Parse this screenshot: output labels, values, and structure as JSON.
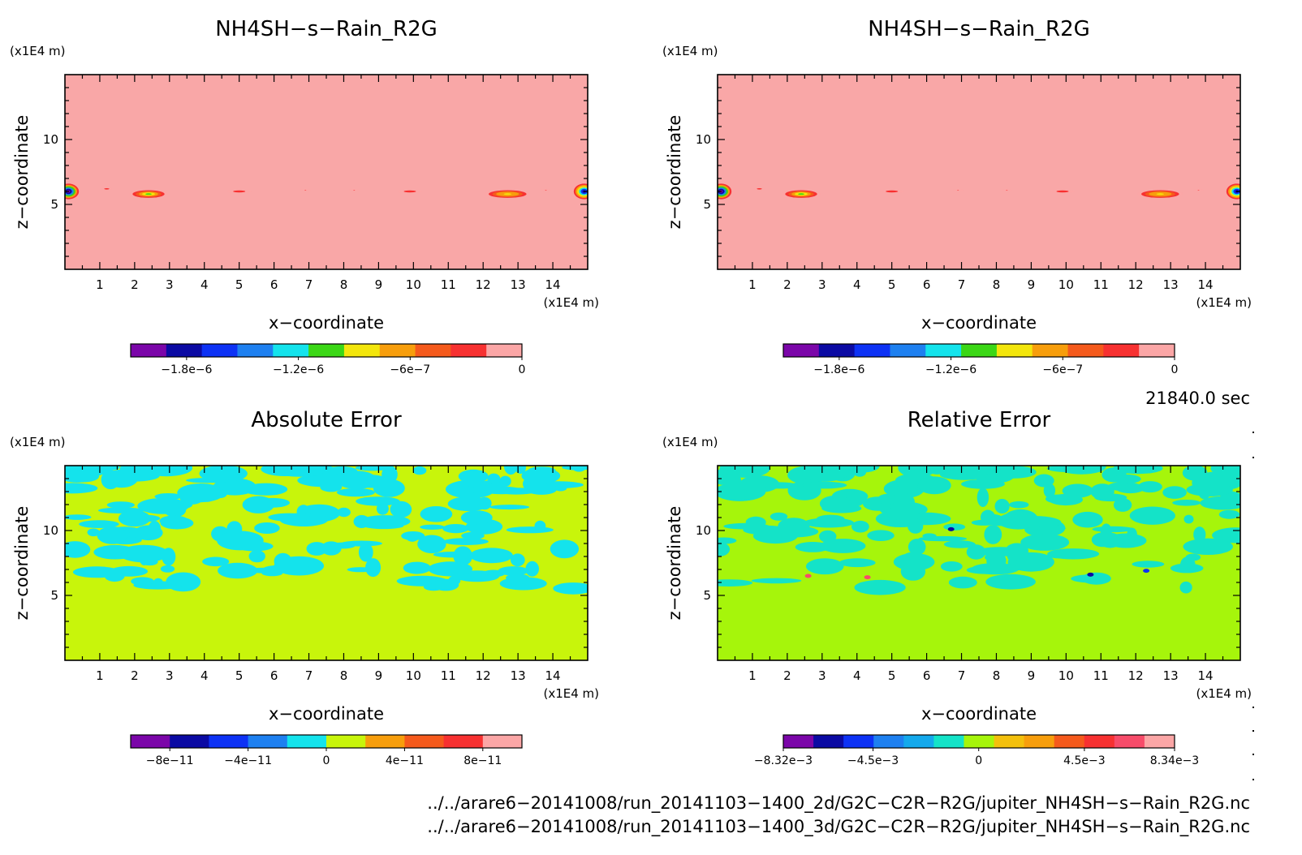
{
  "panels": [
    {
      "id": "p1",
      "title": "NH4SH−s−Rain_R2G",
      "x_unit": "(x1E4 m)",
      "y_unit": "(x1E4 m)",
      "xlabel": "x−coordinate",
      "ylabel": "z−coordinate",
      "x_ticks": [
        "1",
        "2",
        "3",
        "4",
        "5",
        "6",
        "7",
        "8",
        "9",
        "10",
        "11",
        "12",
        "13",
        "14"
      ],
      "y_ticks": [
        "5",
        "10"
      ],
      "background": "#f9a7a7",
      "colorbar": {
        "colors": [
          "#7b06a9",
          "#0b0aa3",
          "#0d32f5",
          "#1e80f0",
          "#14e3ec",
          "#3bd716",
          "#f3e60c",
          "#f79e0c",
          "#f55a1c",
          "#f73131",
          "#fba6a6"
        ],
        "tick_labels": [
          "−1.8e−6",
          "−1.2e−6",
          "−6e−7",
          "0"
        ]
      }
    },
    {
      "id": "p2",
      "title": "NH4SH−s−Rain_R2G",
      "x_unit": "(x1E4 m)",
      "y_unit": "(x1E4 m)",
      "xlabel": "x−coordinate",
      "ylabel": "z−coordinate",
      "x_ticks": [
        "1",
        "2",
        "3",
        "4",
        "5",
        "6",
        "7",
        "8",
        "9",
        "10",
        "11",
        "12",
        "13",
        "14"
      ],
      "y_ticks": [
        "5",
        "10"
      ],
      "background": "#f9a7a7",
      "colorbar": {
        "colors": [
          "#7b06a9",
          "#0b0aa3",
          "#0d32f5",
          "#1e80f0",
          "#14e3ec",
          "#3bd716",
          "#f3e60c",
          "#f79e0c",
          "#f55a1c",
          "#f73131",
          "#fba6a6"
        ],
        "tick_labels": [
          "−1.8e−6",
          "−1.2e−6",
          "−6e−7",
          "0"
        ]
      }
    },
    {
      "id": "p3",
      "title": "Absolute Error",
      "x_unit": "(x1E4 m)",
      "y_unit": "(x1E4 m)",
      "xlabel": "x−coordinate",
      "ylabel": "z−coordinate",
      "x_ticks": [
        "1",
        "2",
        "3",
        "4",
        "5",
        "6",
        "7",
        "8",
        "9",
        "10",
        "11",
        "12",
        "13",
        "14"
      ],
      "y_ticks": [
        "5",
        "10"
      ],
      "background": "#c8f50b",
      "colorbar": {
        "colors": [
          "#7b06a9",
          "#0b0aa3",
          "#0d32f5",
          "#1e80f0",
          "#14e3ec",
          "#c8f50b",
          "#f79e0c",
          "#f55a1c",
          "#f73131",
          "#fba6a6"
        ],
        "tick_labels": [
          "−8e−11",
          "−4e−11",
          "0",
          "4e−11",
          "8e−11"
        ]
      }
    },
    {
      "id": "p4",
      "title": "Relative Error",
      "x_unit": "(x1E4 m)",
      "y_unit": "(x1E4 m)",
      "xlabel": "x−coordinate",
      "ylabel": "z−coordinate",
      "x_ticks": [
        "1",
        "2",
        "3",
        "4",
        "5",
        "6",
        "7",
        "8",
        "9",
        "10",
        "11",
        "12",
        "13",
        "14"
      ],
      "y_ticks": [
        "5",
        "10"
      ],
      "background": "#a6f50b",
      "colorbar": {
        "colors": [
          "#7b06a9",
          "#0b0aa3",
          "#0d32f5",
          "#1e80f0",
          "#14a9ec",
          "#14e3c8",
          "#a6f50b",
          "#f3c00c",
          "#f79e0c",
          "#f55a1c",
          "#f73131",
          "#f74c6a",
          "#fba6a6"
        ],
        "tick_labels": [
          "−8.32e−3",
          "−4.5e−3",
          "0",
          "4.5e−3",
          "8.34e−3"
        ]
      }
    }
  ],
  "time_label": "21840.0 sec",
  "file_paths": [
    "../../arare6−20141008/run_20141103−1400_2d/G2C−C2R−R2G/jupiter_NH4SH−s−Rain_R2G.nc",
    "../../arare6−20141008/run_20141103−1400_3d/G2C−C2R−R2G/jupiter_NH4SH−s−Rain_R2G.nc"
  ],
  "chart_data": [
    {
      "type": "heatmap",
      "title": "NH4SH−s−Rain_R2G",
      "xlabel": "x−coordinate",
      "ylabel": "z−coordinate",
      "x_unit": "(x1E4 m)",
      "y_unit": "(x1E4 m)",
      "xlim": [
        0,
        15
      ],
      "ylim": [
        0,
        15
      ],
      "color_range": [
        -2.1e-06,
        0
      ],
      "background_value": 0,
      "features": [
        {
          "x": 0.1,
          "z": 6.0,
          "rx": 0.3,
          "rz": 0.6,
          "min": -2.1e-06
        },
        {
          "x": 1.2,
          "z": 6.2,
          "rx": 0.15,
          "rz": 0.1,
          "min": -3e-07
        },
        {
          "x": 2.4,
          "z": 5.8,
          "rx": 0.55,
          "rz": 0.35,
          "min": -1.1e-06
        },
        {
          "x": 5.0,
          "z": 6.0,
          "rx": 0.35,
          "rz": 0.15,
          "min": -3e-07
        },
        {
          "x": 6.9,
          "z": 6.1,
          "rx": 0.15,
          "rz": 0.1,
          "min": -2e-07
        },
        {
          "x": 8.3,
          "z": 6.1,
          "rx": 0.15,
          "rz": 0.1,
          "min": -2e-07
        },
        {
          "x": 9.9,
          "z": 6.0,
          "rx": 0.35,
          "rz": 0.15,
          "min": -3e-07
        },
        {
          "x": 12.7,
          "z": 5.8,
          "rx": 0.65,
          "rz": 0.35,
          "min": -9e-07
        },
        {
          "x": 13.8,
          "z": 6.1,
          "rx": 0.15,
          "rz": 0.1,
          "min": -2e-07
        },
        {
          "x": 14.9,
          "z": 6.0,
          "rx": 0.3,
          "rz": 0.6,
          "min": -1.9e-06
        }
      ]
    },
    {
      "type": "heatmap",
      "title": "NH4SH−s−Rain_R2G",
      "xlabel": "x−coordinate",
      "ylabel": "z−coordinate",
      "x_unit": "(x1E4 m)",
      "y_unit": "(x1E4 m)",
      "xlim": [
        0,
        15
      ],
      "ylim": [
        0,
        15
      ],
      "color_range": [
        -2.1e-06,
        0
      ],
      "background_value": 0,
      "features": [
        {
          "x": 0.1,
          "z": 6.0,
          "rx": 0.3,
          "rz": 0.6,
          "min": -2.1e-06
        },
        {
          "x": 1.2,
          "z": 6.2,
          "rx": 0.15,
          "rz": 0.1,
          "min": -3e-07
        },
        {
          "x": 2.4,
          "z": 5.8,
          "rx": 0.55,
          "rz": 0.35,
          "min": -1.1e-06
        },
        {
          "x": 5.0,
          "z": 6.0,
          "rx": 0.35,
          "rz": 0.15,
          "min": -3e-07
        },
        {
          "x": 6.9,
          "z": 6.1,
          "rx": 0.15,
          "rz": 0.1,
          "min": -2e-07
        },
        {
          "x": 8.3,
          "z": 6.1,
          "rx": 0.15,
          "rz": 0.1,
          "min": -2e-07
        },
        {
          "x": 9.9,
          "z": 6.0,
          "rx": 0.35,
          "rz": 0.15,
          "min": -3e-07
        },
        {
          "x": 12.7,
          "z": 5.8,
          "rx": 0.65,
          "rz": 0.35,
          "min": -9e-07
        },
        {
          "x": 13.8,
          "z": 6.1,
          "rx": 0.15,
          "rz": 0.1,
          "min": -2e-07
        },
        {
          "x": 14.9,
          "z": 6.0,
          "rx": 0.3,
          "rz": 0.6,
          "min": -1.9e-06
        }
      ]
    },
    {
      "type": "heatmap",
      "title": "Absolute Error",
      "xlabel": "x−coordinate",
      "ylabel": "z−coordinate",
      "x_unit": "(x1E4 m)",
      "y_unit": "(x1E4 m)",
      "xlim": [
        0,
        15
      ],
      "ylim": [
        0,
        15
      ],
      "color_range": [
        -1e-10,
        1e-10
      ],
      "background_value": 0,
      "noise_region_z": [
        5.5,
        15
      ],
      "noise_value": -1e-11
    },
    {
      "type": "heatmap",
      "title": "Relative Error",
      "xlabel": "x−coordinate",
      "ylabel": "z−coordinate",
      "x_unit": "(x1E4 m)",
      "y_unit": "(x1E4 m)",
      "xlim": [
        0,
        15
      ],
      "ylim": [
        0,
        15
      ],
      "color_range": [
        -0.00832,
        0.00834
      ],
      "background_value": 0,
      "noise_region_z": [
        5.5,
        15
      ],
      "noise_value": -0.001,
      "features": [
        {
          "x": 6.7,
          "z": 10.1,
          "v": -0.006
        },
        {
          "x": 2.6,
          "z": 6.5,
          "v": 0.006
        },
        {
          "x": 4.3,
          "z": 6.4,
          "v": 0.006
        },
        {
          "x": 10.7,
          "z": 6.6,
          "v": -0.007
        },
        {
          "x": 12.3,
          "z": 6.9,
          "v": -0.005
        }
      ]
    }
  ]
}
